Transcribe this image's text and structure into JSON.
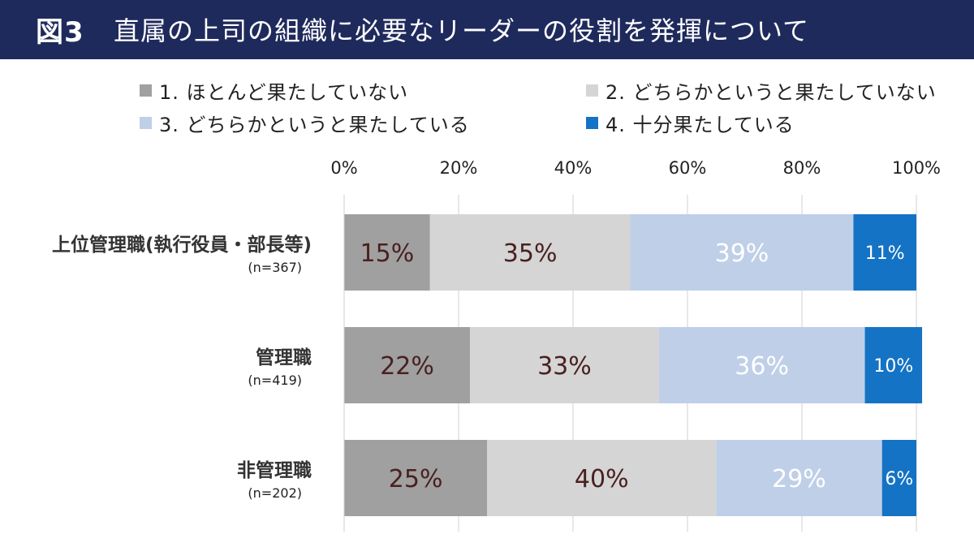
{
  "header": {
    "figure_label": "図3",
    "title": "直属の上司の組織に必要なリーダーの役割を発揮について",
    "background": "#1f2a5c"
  },
  "chart_data": {
    "type": "bar",
    "orientation": "horizontal",
    "stacked": true,
    "percent": true,
    "title": "直属の上司の組織に必要なリーダーの役割を発揮について",
    "categories": [
      "上位管理職(執行役員・部長等)",
      "管理職",
      "非管理職"
    ],
    "category_sublabels": [
      "(n=367)",
      "(n=419)",
      "(n=202)"
    ],
    "series": [
      {
        "name": "1. ほとんど果たしていない",
        "values": [
          15,
          22,
          25
        ],
        "color": "#a0a0a0",
        "label_color": "#4a2020"
      },
      {
        "name": "2. どちらかというと果たしていない",
        "values": [
          35,
          33,
          40
        ],
        "color": "#d5d5d5",
        "label_color": "#4a2020"
      },
      {
        "name": "3. どちらかというと果たしている",
        "values": [
          39,
          36,
          29
        ],
        "color": "#bfcfe8",
        "label_color": "#ffffff"
      },
      {
        "name": "4. 十分果たしている",
        "values": [
          11,
          10,
          6
        ],
        "color": "#1473c4",
        "label_color": "#ffffff"
      }
    ],
    "xlim": [
      0,
      100
    ],
    "xticks": [
      0,
      20,
      40,
      60,
      80,
      100
    ],
    "xtick_labels": [
      "0%",
      "20%",
      "40%",
      "60%",
      "80%",
      "100%"
    ],
    "grid": true,
    "legend_position": "top"
  }
}
